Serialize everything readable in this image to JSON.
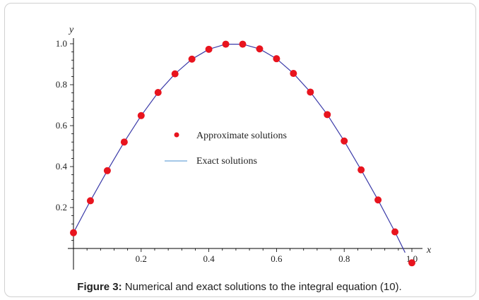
{
  "caption": {
    "label": "Figure 3:",
    "text": " Numerical and exact solutions to the integral equation (10)."
  },
  "chart_data": {
    "type": "scatter",
    "xlabel": "x",
    "ylabel": "y",
    "xlim": [
      0,
      1.0
    ],
    "ylim": [
      -0.09,
      1.0
    ],
    "x_ticks": [
      0.2,
      0.4,
      0.6,
      0.8,
      1.0
    ],
    "x_tick_labels": [
      "0.2",
      "0.4",
      "0.6",
      "0.8",
      "1.0"
    ],
    "y_ticks": [
      0.2,
      0.4,
      0.6,
      0.8,
      1.0
    ],
    "y_tick_labels": [
      "0.2",
      "0.4",
      "0.6",
      "0.8",
      "1.0"
    ],
    "legend_position": "center",
    "series": [
      {
        "name": "Approximate solutions",
        "style": "points",
        "color": "#e8141e",
        "x": [
          0,
          0.05,
          0.1,
          0.15,
          0.2,
          0.25,
          0.3,
          0.35,
          0.4,
          0.45,
          0.5,
          0.55,
          0.6,
          0.65,
          0.7,
          0.75,
          0.8,
          0.85,
          0.9,
          0.95,
          1.0
        ],
        "y": [
          0.077,
          0.233,
          0.38,
          0.52,
          0.649,
          0.762,
          0.853,
          0.925,
          0.973,
          0.998,
          0.998,
          0.975,
          0.927,
          0.855,
          0.764,
          0.654,
          0.525,
          0.384,
          0.237,
          0.081,
          -0.07
        ]
      },
      {
        "name": "Exact solutions",
        "style": "line",
        "color": "#3a3aa8",
        "x": [
          0,
          0.05,
          0.1,
          0.15,
          0.2,
          0.25,
          0.3,
          0.35,
          0.4,
          0.45,
          0.5,
          0.55,
          0.6,
          0.65,
          0.7,
          0.75,
          0.8,
          0.85,
          0.9,
          0.95,
          0.98
        ],
        "y": [
          0.077,
          0.233,
          0.38,
          0.52,
          0.649,
          0.762,
          0.853,
          0.925,
          0.973,
          0.998,
          0.998,
          0.975,
          0.927,
          0.855,
          0.764,
          0.654,
          0.525,
          0.384,
          0.237,
          0.081,
          -0.02
        ]
      }
    ]
  },
  "legend": {
    "approx_label": "Approximate solutions",
    "exact_label": "Exact solutions",
    "exact_swatch_color": "#4a90d0"
  }
}
